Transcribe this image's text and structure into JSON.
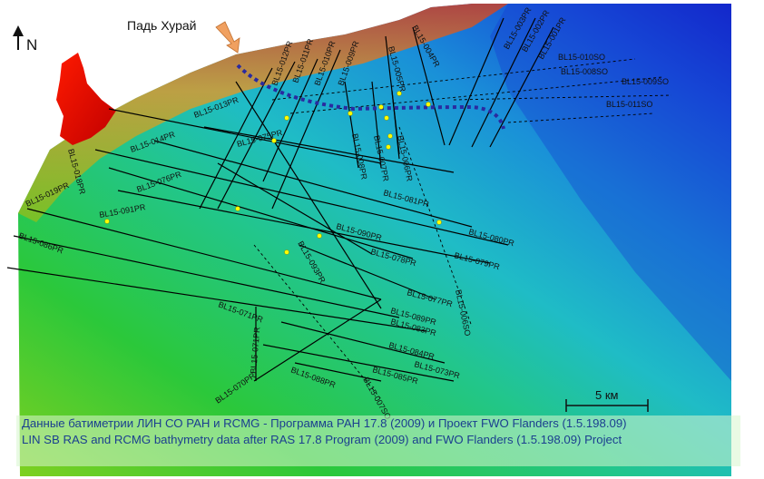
{
  "map": {
    "place_label": "Падь Хурай",
    "north_label": "N",
    "scale_label": "5 км",
    "credit_ru": "Данные батиметрии ЛИН СО РАН и RCMG - Программа РАН 17.8 (2009) и Проект FWO Flanders (1.5.198.09)",
    "credit_en": "LIN SB RAS and RCMG bathymetry data after RAS 17.8 Program (2009) and FWO Flanders (1.5.198.09) Project",
    "colors": {
      "deep": "#1633d0",
      "mid": "#1fb8c8",
      "shallow": "#2bc83a",
      "shore": "#e03a10",
      "land": "#e00000",
      "profile_line": "#000000",
      "dotted_route": "#2a2aa0",
      "station": "#ffff00",
      "arrow": "#f0a060"
    },
    "profile_labels": [
      "BL15-003PR",
      "BL15-002PR",
      "BL15-001PR",
      "BL15-010SO",
      "BL15-008SO",
      "BL15-009SO",
      "BL15-011SO",
      "BL15-004PR",
      "BL15-005PR",
      "BL15-009PR",
      "BL15-010PR",
      "BL15-011PR",
      "BL15-012PR",
      "BL15-013PR",
      "BL15-006PR",
      "BL15-007PR",
      "BL15-008PR",
      "BL15-075PR",
      "BL15-014PR",
      "BL15-076PR",
      "BL15-081PR",
      "BL15-080PR",
      "BL15-079PR",
      "BL15-078PR",
      "BL15-090PR",
      "BL15-091PR",
      "BL15-019PR",
      "BL15-018PR",
      "BL15-086PR",
      "BL15-093PR",
      "BL15-077PR",
      "BL15-089PR",
      "BL15-083PR",
      "BL15-006SO",
      "BL15-071PR",
      "BL15-084PR",
      "BL15-073PR",
      "BL15-085PR",
      "BL15-088PR",
      "BL15-070PR",
      "BL15-007SO"
    ]
  }
}
